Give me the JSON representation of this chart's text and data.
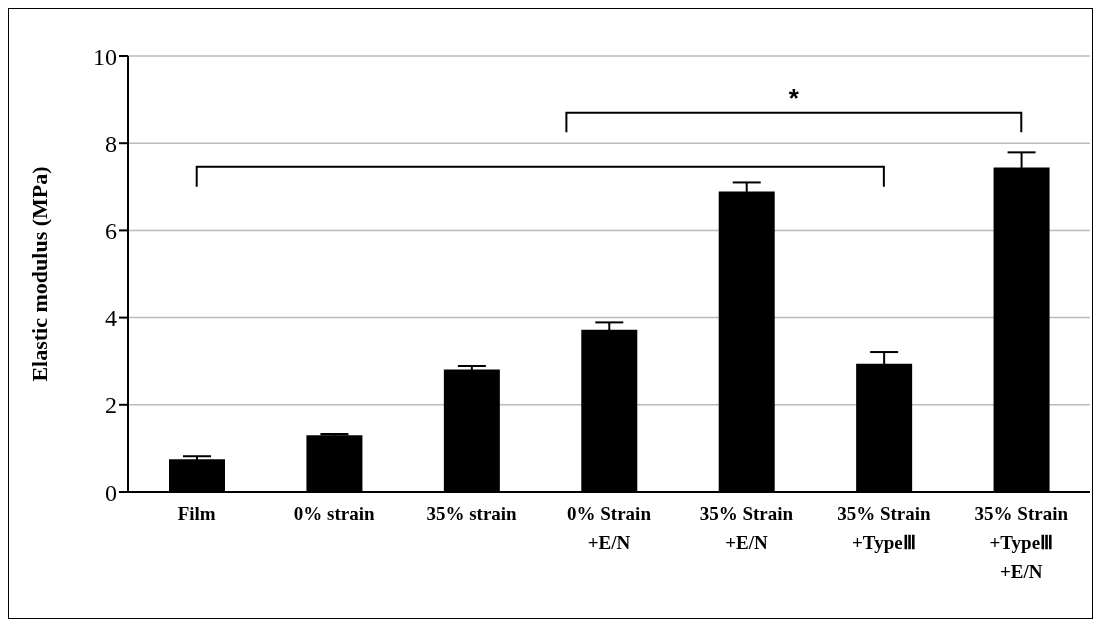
{
  "chart_data": {
    "type": "bar",
    "ylabel": "Elastic modulus (MPa)",
    "categories": [
      "Film",
      "0% strain",
      "35% strain",
      "0% Strain\n+E/N",
      "35% Strain\n+E/N",
      "35% Strain\n+TypeⅢ",
      "35% Strain\n+TypeⅢ\n+E/N"
    ],
    "values": [
      0.75,
      1.3,
      2.81,
      3.72,
      6.89,
      2.94,
      7.44
    ],
    "errors": [
      0.07,
      0.03,
      0.08,
      0.17,
      0.21,
      0.27,
      0.35
    ],
    "color": "#000000",
    "ylim": [
      0,
      10
    ],
    "yticks": [
      0,
      2,
      4,
      6,
      8,
      10
    ],
    "grid": "y",
    "annotations": [
      "*"
    ]
  }
}
